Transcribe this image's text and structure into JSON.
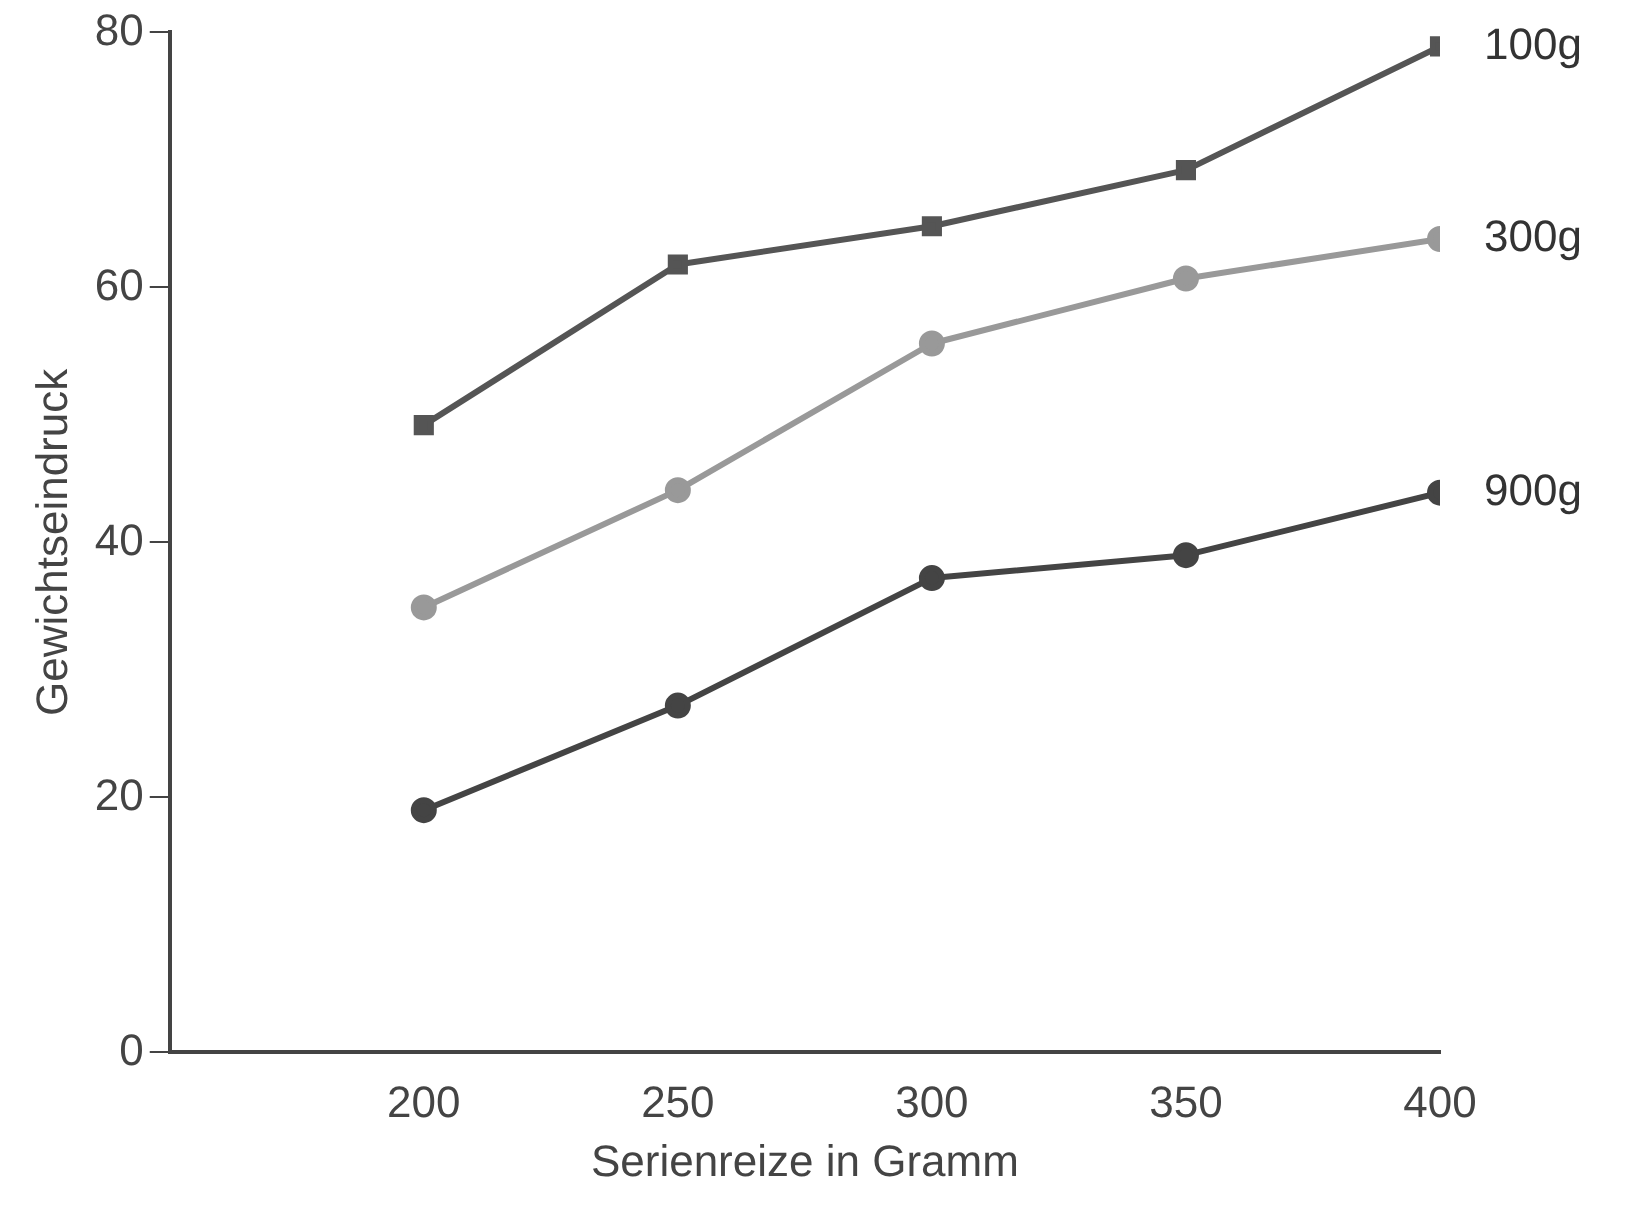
{
  "chart_data": {
    "type": "line",
    "xlabel": "Serienreize in Gramm",
    "ylabel": "Gewichtseindruck",
    "x": [
      200,
      250,
      300,
      350,
      400
    ],
    "xlim": [
      150,
      400
    ],
    "xticks": [
      200,
      250,
      300,
      350,
      400
    ],
    "ylim": [
      0,
      80
    ],
    "yticks": [
      0,
      20,
      40,
      60,
      80
    ],
    "series": [
      {
        "name": "100g",
        "color": "#555555",
        "marker": "square",
        "values": [
          49.2,
          61.8,
          64.8,
          69.2,
          78.9
        ]
      },
      {
        "name": "300g",
        "color": "#999999",
        "marker": "circle",
        "values": [
          34.9,
          44.1,
          55.6,
          60.7,
          63.8
        ]
      },
      {
        "name": "900g",
        "color": "#444444",
        "marker": "circle",
        "values": [
          19.0,
          27.2,
          37.2,
          39.0,
          43.9
        ]
      }
    ],
    "grid": false,
    "legend": false,
    "line_style": "solid"
  }
}
